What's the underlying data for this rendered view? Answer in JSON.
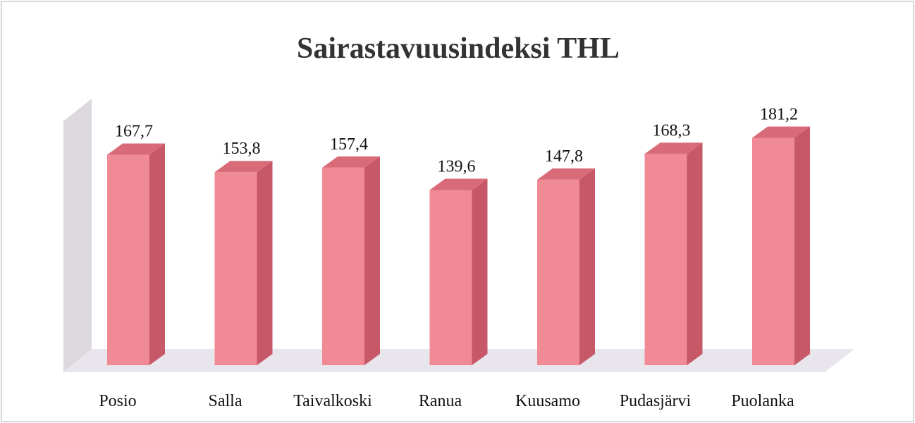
{
  "chart_data": {
    "type": "bar",
    "title": "Sairastavuusindeksi THL",
    "categories": [
      "Posio",
      "Salla",
      "Taivalkoski",
      "Ranua",
      "Kuusamo",
      "Pudasjärvi",
      "Puolanka"
    ],
    "values": [
      167.7,
      153.8,
      157.4,
      139.6,
      147.8,
      168.3,
      181.2
    ],
    "value_labels": [
      "167,7",
      "153,8",
      "157,4",
      "139,6",
      "147,8",
      "168,3",
      "181,2"
    ],
    "color": "#f08a94"
  }
}
